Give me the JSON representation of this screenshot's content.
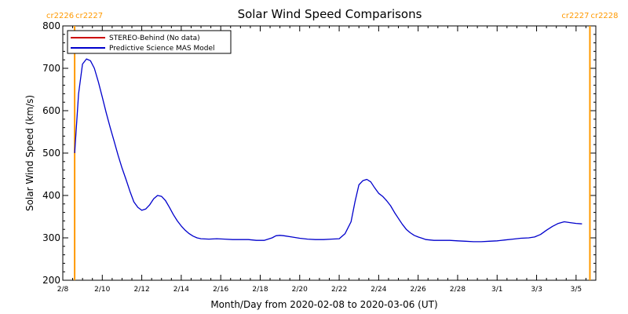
{
  "chart_data": {
    "type": "line",
    "title": "Solar Wind Speed Comparisons",
    "xlabel": "Month/Day from 2020-02-08 to 2020-03-06 (UT)",
    "ylabel": "Solar Wind Speed (km/s)",
    "x_domain_days": [
      0,
      27
    ],
    "ylim": [
      200,
      800
    ],
    "y_ticks": [
      200,
      300,
      400,
      500,
      600,
      700,
      800
    ],
    "x_ticks": [
      {
        "day": 0,
        "label": "2/8"
      },
      {
        "day": 2,
        "label": "2/10"
      },
      {
        "day": 4,
        "label": "2/12"
      },
      {
        "day": 6,
        "label": "2/14"
      },
      {
        "day": 8,
        "label": "2/16"
      },
      {
        "day": 10,
        "label": "2/18"
      },
      {
        "day": 12,
        "label": "2/20"
      },
      {
        "day": 14,
        "label": "2/22"
      },
      {
        "day": 16,
        "label": "2/24"
      },
      {
        "day": 18,
        "label": "2/26"
      },
      {
        "day": 20,
        "label": "2/28"
      },
      {
        "day": 22,
        "label": "3/1"
      },
      {
        "day": 24,
        "label": "3/3"
      },
      {
        "day": 26,
        "label": "3/5"
      }
    ],
    "markers": [
      {
        "day": 0.6,
        "left_label": "cr2226",
        "right_label": "cr2227",
        "color": "#ff9900"
      },
      {
        "day": 26.7,
        "left_label": "cr2227",
        "right_label": "cr2228",
        "color": "#ff9900"
      }
    ],
    "legend": {
      "placement": "top-left",
      "entries": [
        {
          "label": "STEREO-Behind (No data)",
          "color": "#cc0000"
        },
        {
          "label": "Predictive Science MAS Model",
          "color": "#0000cc"
        }
      ]
    },
    "series": [
      {
        "name": "Predictive Science MAS Model",
        "color": "#0000cc",
        "points": [
          [
            0.6,
            500
          ],
          [
            0.8,
            640
          ],
          [
            1.0,
            710
          ],
          [
            1.2,
            722
          ],
          [
            1.4,
            718
          ],
          [
            1.6,
            700
          ],
          [
            1.8,
            668
          ],
          [
            2.0,
            632
          ],
          [
            2.2,
            595
          ],
          [
            2.4,
            560
          ],
          [
            2.6,
            528
          ],
          [
            2.8,
            495
          ],
          [
            3.0,
            465
          ],
          [
            3.2,
            438
          ],
          [
            3.4,
            410
          ],
          [
            3.6,
            385
          ],
          [
            3.8,
            372
          ],
          [
            4.0,
            365
          ],
          [
            4.2,
            368
          ],
          [
            4.4,
            378
          ],
          [
            4.6,
            392
          ],
          [
            4.8,
            400
          ],
          [
            5.0,
            398
          ],
          [
            5.2,
            388
          ],
          [
            5.4,
            372
          ],
          [
            5.6,
            355
          ],
          [
            5.8,
            340
          ],
          [
            6.0,
            328
          ],
          [
            6.2,
            318
          ],
          [
            6.4,
            310
          ],
          [
            6.6,
            304
          ],
          [
            6.8,
            300
          ],
          [
            7.0,
            298
          ],
          [
            7.4,
            297
          ],
          [
            7.8,
            298
          ],
          [
            8.2,
            297
          ],
          [
            8.6,
            296
          ],
          [
            9.0,
            296
          ],
          [
            9.4,
            296
          ],
          [
            9.8,
            294
          ],
          [
            10.2,
            294
          ],
          [
            10.6,
            300
          ],
          [
            10.8,
            305
          ],
          [
            11.0,
            306
          ],
          [
            11.2,
            305
          ],
          [
            11.6,
            302
          ],
          [
            12.0,
            299
          ],
          [
            12.4,
            297
          ],
          [
            12.8,
            296
          ],
          [
            13.2,
            296
          ],
          [
            13.6,
            297
          ],
          [
            14.0,
            298
          ],
          [
            14.3,
            310
          ],
          [
            14.6,
            338
          ],
          [
            14.8,
            385
          ],
          [
            15.0,
            425
          ],
          [
            15.2,
            435
          ],
          [
            15.4,
            438
          ],
          [
            15.6,
            432
          ],
          [
            15.8,
            418
          ],
          [
            16.0,
            405
          ],
          [
            16.2,
            398
          ],
          [
            16.4,
            388
          ],
          [
            16.6,
            376
          ],
          [
            16.8,
            360
          ],
          [
            17.0,
            346
          ],
          [
            17.2,
            332
          ],
          [
            17.4,
            320
          ],
          [
            17.6,
            312
          ],
          [
            17.8,
            306
          ],
          [
            18.0,
            302
          ],
          [
            18.2,
            299
          ],
          [
            18.4,
            296
          ],
          [
            18.8,
            294
          ],
          [
            19.2,
            294
          ],
          [
            19.6,
            294
          ],
          [
            20.0,
            293
          ],
          [
            20.4,
            292
          ],
          [
            20.8,
            291
          ],
          [
            21.2,
            291
          ],
          [
            21.6,
            292
          ],
          [
            22.0,
            293
          ],
          [
            22.4,
            295
          ],
          [
            22.8,
            297
          ],
          [
            23.2,
            299
          ],
          [
            23.6,
            300
          ],
          [
            23.9,
            302
          ],
          [
            24.2,
            308
          ],
          [
            24.5,
            318
          ],
          [
            24.8,
            327
          ],
          [
            25.1,
            334
          ],
          [
            25.4,
            338
          ],
          [
            25.7,
            336
          ],
          [
            26.0,
            334
          ],
          [
            26.3,
            333
          ]
        ]
      }
    ]
  }
}
